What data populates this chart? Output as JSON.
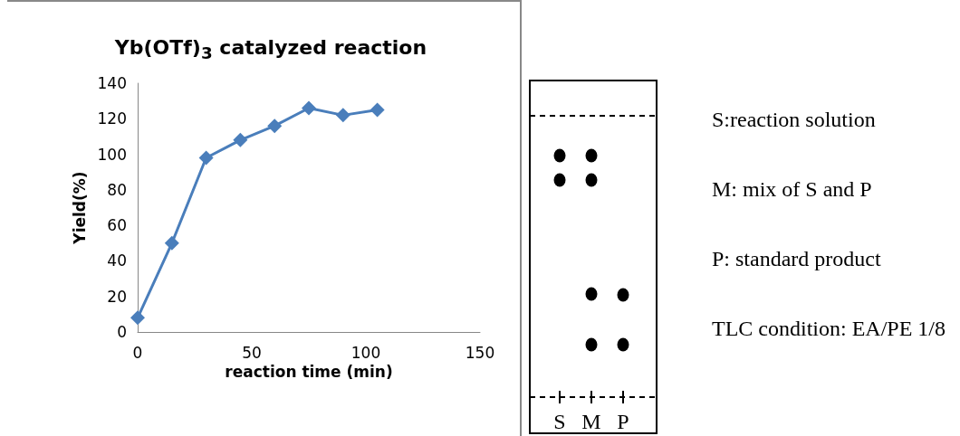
{
  "chart_data": [
    {
      "type": "line",
      "title": "Yb(OTf)$_{3}$ catalyzed reaction",
      "xlabel": "reaction time (min)",
      "ylabel": "Yield(%)",
      "x": [
        0,
        15,
        30,
        45,
        60,
        75,
        90,
        105
      ],
      "series": [
        {
          "color": "#4a7ebb",
          "values": [
            8,
            50,
            98,
            108,
            116,
            126,
            122,
            125
          ]
        }
      ],
      "xlim": [
        0,
        150
      ],
      "xticks": [
        0,
        50,
        100,
        150
      ],
      "ylim": [
        0,
        140
      ],
      "yticks": [
        0,
        20,
        40,
        60,
        80,
        100,
        120,
        140
      ],
      "grid": false,
      "marker": "diamond",
      "line_style": "solid"
    },
    {
      "type": "other",
      "categories": [
        "S",
        "M",
        "P"
      ],
      "annotations": [
        "S:reaction solution",
        "M: mix of S and P",
        "P: standard product",
        "TLC condition: EA/PE 1/8"
      ]
    }
  ]
}
